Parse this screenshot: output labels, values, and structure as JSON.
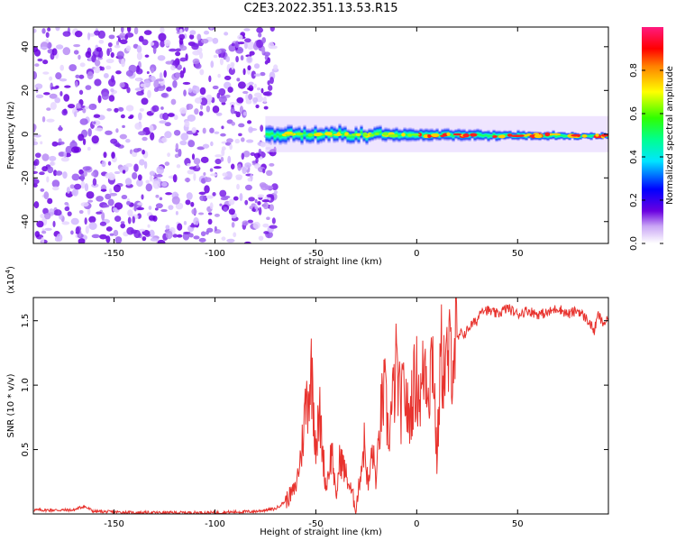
{
  "title": "C2E3.2022.351.13.53.R15",
  "chart_data": [
    {
      "type": "heatmap",
      "xlabel": "Height of straight line (km)",
      "ylabel": "Frequency (Hz)",
      "xlim": [
        -190,
        95
      ],
      "ylim": [
        -50,
        49
      ],
      "xticks": [
        -150,
        -100,
        -50,
        0,
        50
      ],
      "yticks": [
        -40,
        -20,
        0,
        20,
        40
      ],
      "colorbar": {
        "label": "Normalized spectral amplitude",
        "range": [
          0,
          1
        ],
        "ticks": [
          "0.0",
          "0.2",
          "0.4",
          "0.6",
          "0.8"
        ],
        "tick_values": [
          0.0,
          0.2,
          0.4,
          0.6,
          0.8
        ]
      },
      "description_regions": {
        "noise_region_x": [
          -190,
          -75
        ],
        "signal_band_x": [
          -75,
          95
        ],
        "signal_center_freq_hz": 0
      }
    },
    {
      "type": "line",
      "xlabel": "Height of straight line (km)",
      "ylabel": "SNR (10 * v/v)",
      "multiplier_label": "(x10",
      "multiplier_exp": "4",
      "xlim": [
        -190,
        95
      ],
      "ylim": [
        0,
        1.68
      ],
      "xticks": [
        -150,
        -100,
        -50,
        0,
        50
      ],
      "yticks": [
        0.5,
        1.0,
        1.5
      ],
      "ytick_labels": [
        "0.5",
        "1.0",
        "1.5"
      ],
      "color": "#e8332e",
      "series": [
        {
          "x": [
            -190,
            -170,
            -165,
            -160,
            -140,
            -120,
            -100,
            -80,
            -70,
            -65,
            -60,
            -57,
            -55,
            -52,
            -50,
            -48,
            -45,
            -42,
            -40,
            -38,
            -35,
            -32,
            -30,
            -28,
            -26,
            -24,
            -22,
            -20,
            -18,
            -16,
            -14,
            -12,
            -10,
            -8,
            -6,
            -4,
            -2,
            0,
            2,
            4,
            6,
            8,
            10,
            12,
            14,
            16,
            18,
            20,
            22,
            24,
            26,
            28,
            30,
            32,
            35,
            40,
            45,
            50,
            55,
            60,
            65,
            70,
            75,
            80,
            85,
            88,
            90,
            92,
            95
          ],
          "values": [
            0.03,
            0.03,
            0.06,
            0.02,
            0.01,
            0.01,
            0.01,
            0.02,
            0.04,
            0.1,
            0.2,
            0.5,
            0.85,
            1.1,
            0.55,
            0.75,
            0.2,
            0.5,
            0.1,
            0.45,
            0.3,
            0.15,
            0.05,
            0.3,
            0.55,
            0.2,
            0.5,
            0.25,
            0.75,
            0.95,
            0.6,
            0.85,
            1.15,
            0.8,
            1.0,
            0.7,
            0.95,
            1.05,
            0.9,
            1.2,
            1.0,
            1.3,
            0.4,
            1.25,
            1.1,
            1.2,
            1.3,
            1.35,
            1.4,
            1.4,
            1.45,
            1.48,
            1.5,
            1.6,
            1.58,
            1.55,
            1.6,
            1.55,
            1.58,
            1.55,
            1.56,
            1.6,
            1.55,
            1.58,
            1.5,
            1.42,
            1.55,
            1.48,
            1.5
          ]
        }
      ]
    }
  ]
}
